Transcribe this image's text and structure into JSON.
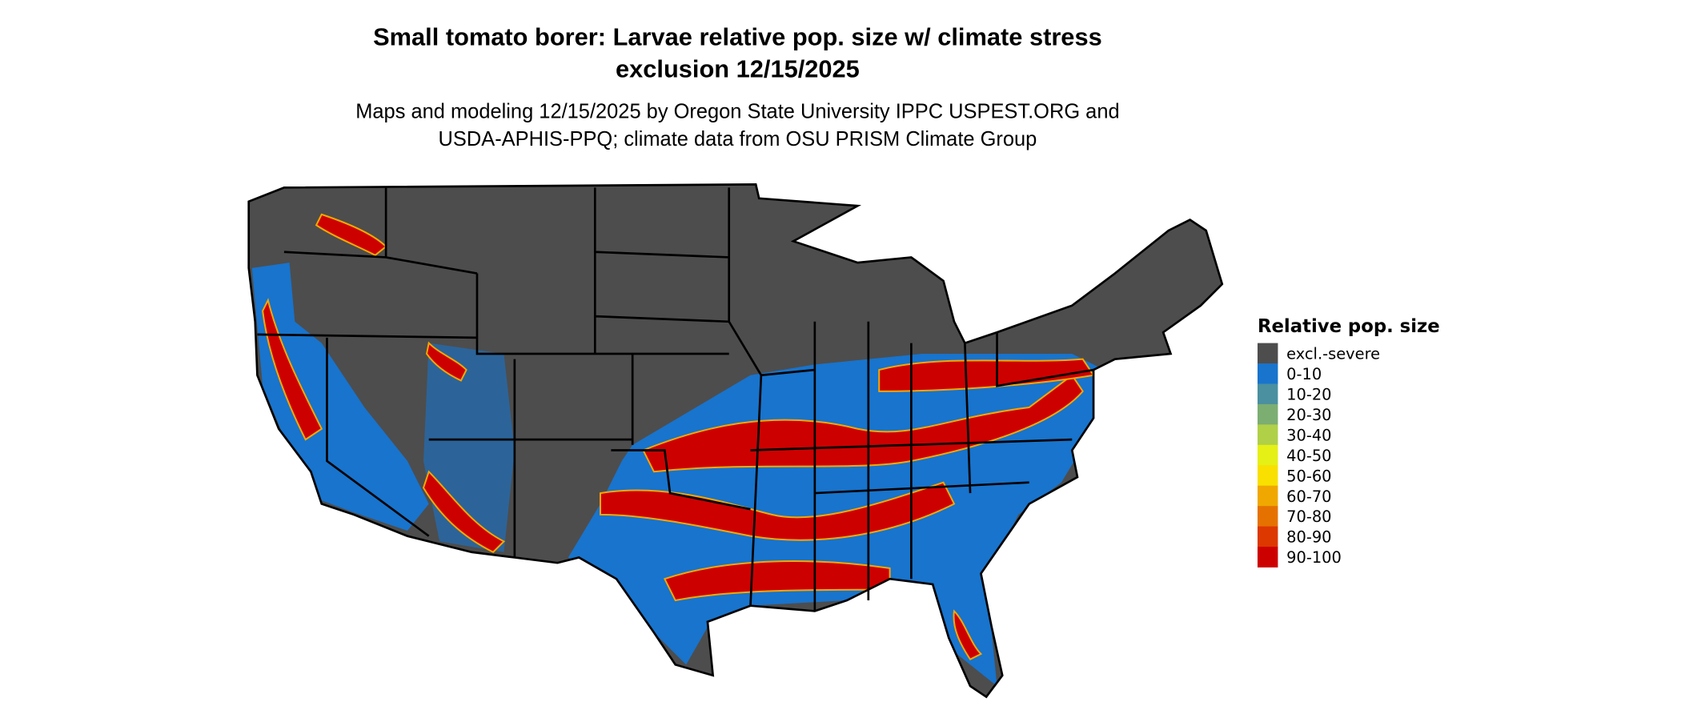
{
  "title_line1": "Small tomato borer: Larvae relative pop. size w/ climate stress",
  "title_line2": "exclusion 12/15/2025",
  "subtitle_line1": "Maps and modeling 12/15/2025 by Oregon State University IPPC USPEST.ORG and",
  "subtitle_line2": "USDA-APHIS-PPQ; climate data from OSU PRISM Climate Group",
  "legend": {
    "title": "Relative pop. size",
    "items": [
      {
        "label": "excl.-severe",
        "color": "#4d4d4d"
      },
      {
        "label": "0-10",
        "color": "#1874cd"
      },
      {
        "label": "10-20",
        "color": "#4a90a0"
      },
      {
        "label": "20-30",
        "color": "#7cae72"
      },
      {
        "label": "30-40",
        "color": "#b0d048"
      },
      {
        "label": "40-50",
        "color": "#e5f016"
      },
      {
        "label": "50-60",
        "color": "#f9e000"
      },
      {
        "label": "60-70",
        "color": "#f0a800"
      },
      {
        "label": "70-80",
        "color": "#e57200"
      },
      {
        "label": "80-90",
        "color": "#dc3800"
      },
      {
        "label": "90-100",
        "color": "#cd0000"
      }
    ]
  }
}
